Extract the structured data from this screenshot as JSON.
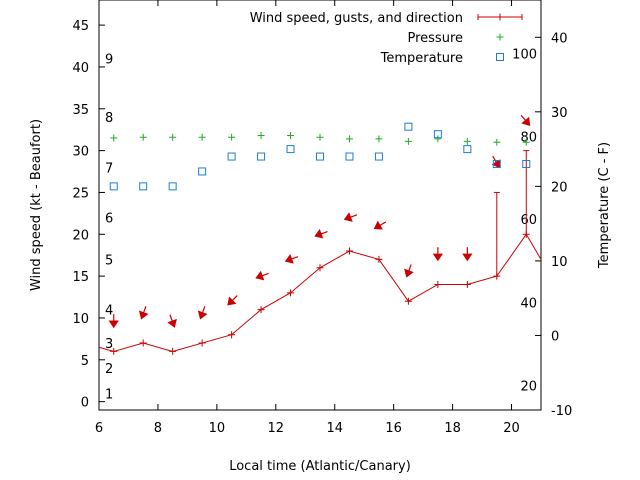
{
  "chart_data": {
    "type": "line",
    "x_label": "Local time (Atlantic/Canary)",
    "y_left_label": "Wind speed (kt - Beaufort)",
    "y_right_label": "Temperature (C - F)",
    "xlim": [
      6,
      21
    ],
    "ylim_left": [
      -1,
      48
    ],
    "ylim_right": [
      -10,
      45
    ],
    "x_ticks": [
      "6",
      "8",
      "10",
      "12",
      "14",
      "16",
      "18",
      "20"
    ],
    "y_left_ticks": [
      "0",
      "5",
      "10",
      "15",
      "20",
      "25",
      "30",
      "35",
      "40",
      "45"
    ],
    "y_right_ticks": [
      "-10",
      "0",
      "10",
      "20",
      "30",
      "40"
    ],
    "beaufort_labels": [
      {
        "text": "1",
        "wind_kt": 1
      },
      {
        "text": "2",
        "wind_kt": 4
      },
      {
        "text": "3",
        "wind_kt": 7
      },
      {
        "text": "4",
        "wind_kt": 11
      },
      {
        "text": "5",
        "wind_kt": 17
      },
      {
        "text": "6",
        "wind_kt": 22
      },
      {
        "text": "7",
        "wind_kt": 28
      },
      {
        "text": "8",
        "wind_kt": 34
      },
      {
        "text": "9",
        "wind_kt": 41
      }
    ],
    "fahrenheit_labels": [
      {
        "text": "20",
        "temp_c": -6.7
      },
      {
        "text": "40",
        "temp_c": 4.4
      },
      {
        "text": "60",
        "temp_c": 15.6
      },
      {
        "text": "80",
        "temp_c": 26.7
      },
      {
        "text": "100",
        "temp_c": 37.8
      }
    ],
    "legend": [
      {
        "label": "Wind speed, gusts, and direction",
        "color": "#cc0000"
      },
      {
        "label": "Pressure",
        "color": "#22aa22"
      },
      {
        "label": "Temperature",
        "color": "#1a7fd0"
      }
    ],
    "wind": {
      "x": [
        6.0,
        6.5,
        7.5,
        8.5,
        9.5,
        10.5,
        11.5,
        12.5,
        13.5,
        14.5,
        15.5,
        16.5,
        17.5,
        18.5,
        19.5,
        20.5,
        21.0
      ],
      "speed": [
        6.5,
        6,
        7,
        6,
        7,
        8,
        11,
        13,
        16,
        18,
        17,
        12,
        14,
        14,
        15,
        20,
        17
      ],
      "gusts": [
        {
          "x": 19.5,
          "value": 25
        },
        {
          "x": 20.5,
          "value": 30
        }
      ]
    },
    "wind_direction_arrows": [
      {
        "x": 6.5,
        "y": 9.5,
        "angle_deg": 180
      },
      {
        "x": 7.5,
        "y": 10.5,
        "angle_deg": 200
      },
      {
        "x": 8.5,
        "y": 9.5,
        "angle_deg": 160
      },
      {
        "x": 9.5,
        "y": 10.5,
        "angle_deg": 200
      },
      {
        "x": 10.5,
        "y": 12,
        "angle_deg": 225
      },
      {
        "x": 11.5,
        "y": 15,
        "angle_deg": 250
      },
      {
        "x": 12.5,
        "y": 17,
        "angle_deg": 250
      },
      {
        "x": 13.5,
        "y": 20,
        "angle_deg": 250
      },
      {
        "x": 14.5,
        "y": 22,
        "angle_deg": 250
      },
      {
        "x": 15.5,
        "y": 21,
        "angle_deg": 240
      },
      {
        "x": 16.5,
        "y": 15.5,
        "angle_deg": 200
      },
      {
        "x": 17.5,
        "y": 17.5,
        "angle_deg": 180
      },
      {
        "x": 18.5,
        "y": 17.5,
        "angle_deg": 180
      },
      {
        "x": 19.5,
        "y": 28.5,
        "angle_deg": 150
      },
      {
        "x": 20.5,
        "y": 33.5,
        "angle_deg": 140
      }
    ],
    "pressure": {
      "x": [
        6.5,
        7.5,
        8.5,
        9.5,
        10.5,
        11.5,
        12.5,
        13.5,
        14.5,
        15.5,
        16.5,
        17.5,
        18.5,
        19.5,
        20.5
      ],
      "wind_axis_value": [
        31.5,
        31.6,
        31.6,
        31.6,
        31.6,
        31.8,
        31.8,
        31.6,
        31.4,
        31.4,
        31.1,
        31.4,
        31.1,
        31.0,
        31.0
      ]
    },
    "temperature": {
      "x": [
        6.5,
        7.5,
        8.5,
        9.5,
        10.5,
        11.5,
        12.5,
        13.5,
        14.5,
        15.5,
        16.5,
        17.5,
        18.5,
        19.5,
        20.5
      ],
      "values_c": [
        20,
        20,
        20,
        22,
        24,
        24,
        25,
        24,
        24,
        24,
        28,
        27,
        25,
        23,
        23
      ]
    }
  }
}
